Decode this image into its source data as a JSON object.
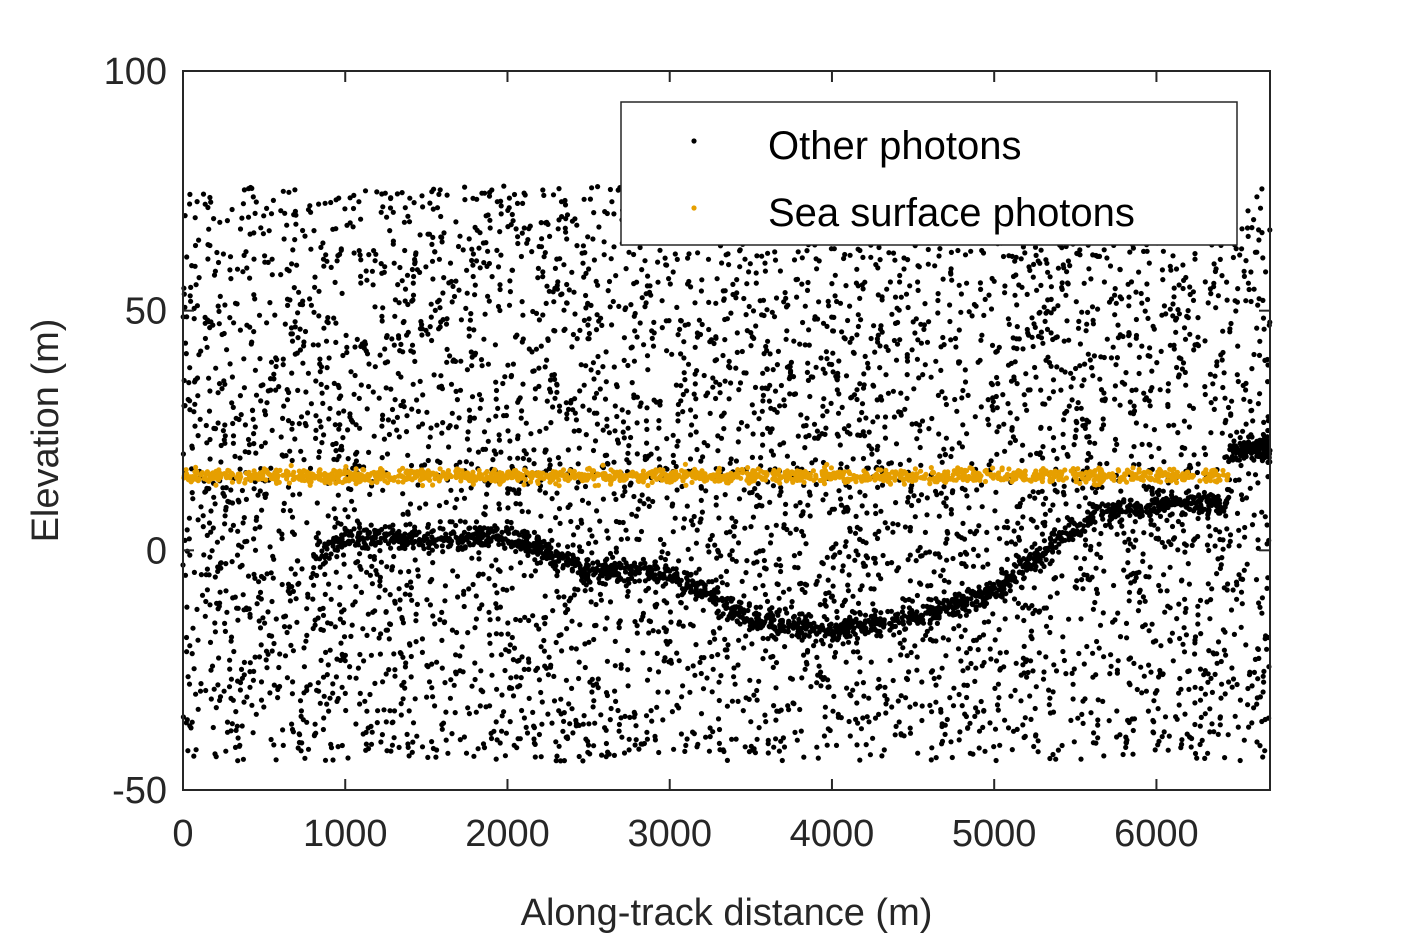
{
  "chart_data": {
    "type": "scatter",
    "xlabel": "Along-track distance (m)",
    "ylabel": "Elevation (m)",
    "xlim": [
      0,
      6700
    ],
    "ylim": [
      -50,
      100
    ],
    "xticks": [
      0,
      1000,
      2000,
      3000,
      4000,
      5000,
      6000
    ],
    "xtick_labels": [
      "0",
      "1000",
      "2000",
      "3000",
      "4000",
      "5000",
      "6000"
    ],
    "yticks": [
      -50,
      0,
      50,
      100
    ],
    "ytick_labels": [
      "-50",
      "0",
      "50",
      "100"
    ],
    "grid": false,
    "legend_position": "top-right",
    "series": [
      {
        "name": "Other photons",
        "color": "#000000",
        "noise_band": {
          "x_range": [
            0,
            6700
          ],
          "y_range": [
            -44,
            76
          ],
          "approx_density": "dense"
        },
        "seabed_profile": {
          "x": [
            800,
            1000,
            1500,
            2000,
            2500,
            3000,
            3500,
            4000,
            4500,
            5000,
            5300,
            5600,
            6000,
            6450
          ],
          "y": [
            -2,
            3,
            2,
            3,
            -4,
            -5,
            -14,
            -17,
            -14,
            -9,
            0,
            7,
            10,
            10
          ]
        },
        "right_edge_cluster": {
          "x_range": [
            6450,
            6700
          ],
          "y": 21
        }
      },
      {
        "name": "Sea surface photons",
        "color": "#E69F00",
        "x_range": [
          0,
          6450
        ],
        "y": 15.5
      }
    ]
  }
}
